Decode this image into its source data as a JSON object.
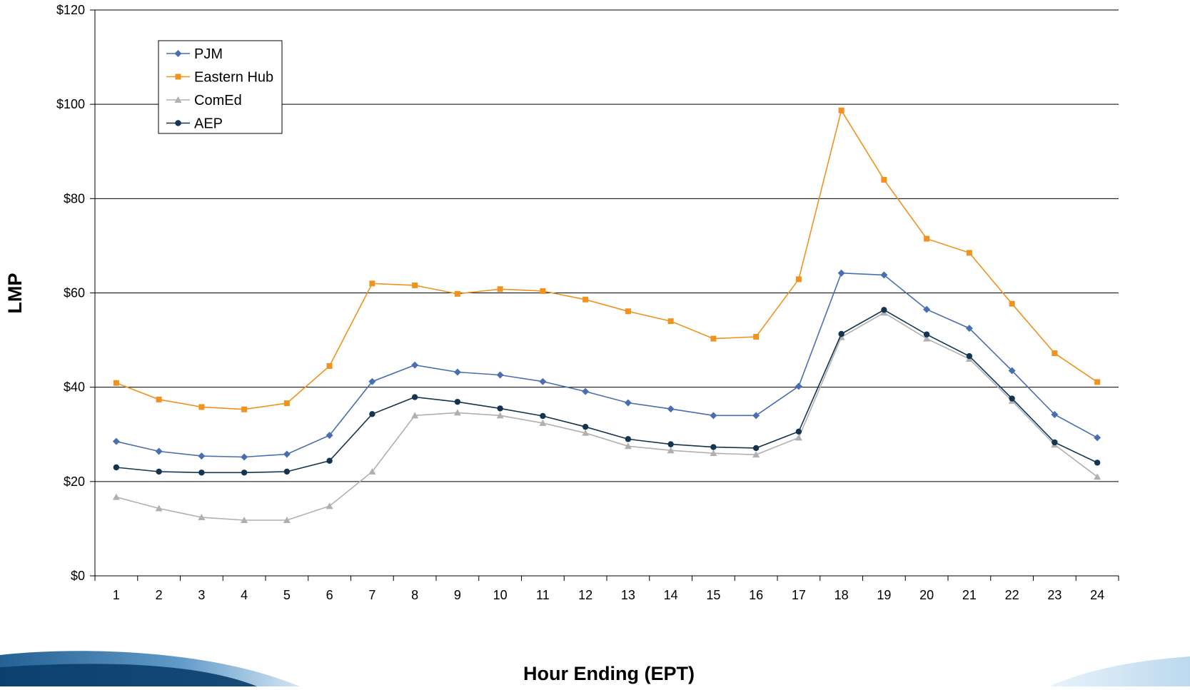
{
  "chart_data": {
    "type": "line",
    "title": "",
    "xlabel": "Hour Ending (EPT)",
    "ylabel": "LMP",
    "x": [
      "1",
      "2",
      "3",
      "4",
      "5",
      "6",
      "7",
      "8",
      "9",
      "10",
      "11",
      "12",
      "13",
      "14",
      "15",
      "16",
      "17",
      "18",
      "19",
      "20",
      "21",
      "22",
      "23",
      "24"
    ],
    "ylim": [
      0,
      120
    ],
    "y_ticks": [
      0,
      20,
      40,
      60,
      80,
      100,
      120
    ],
    "y_tick_labels": [
      "$0",
      "$20",
      "$40",
      "$60",
      "$80",
      "$100",
      "$120"
    ],
    "grid": "horizontal",
    "legend_position": "top-left",
    "series": [
      {
        "name": "PJM",
        "color": "#4a6fb0",
        "marker": "diamond",
        "values": [
          28.5,
          26.4,
          25.4,
          25.2,
          25.8,
          29.8,
          41.2,
          44.7,
          43.2,
          42.6,
          41.2,
          39.1,
          36.7,
          35.4,
          34.0,
          34.0,
          40.2,
          64.2,
          63.8,
          56.5,
          52.5,
          43.5,
          34.2,
          29.3
        ]
      },
      {
        "name": "Eastern Hub",
        "color": "#f0921e",
        "marker": "square",
        "values": [
          40.9,
          37.4,
          35.8,
          35.3,
          36.6,
          44.5,
          62.0,
          61.6,
          59.8,
          60.8,
          60.4,
          58.6,
          56.1,
          54.0,
          50.3,
          50.7,
          62.9,
          98.7,
          84.0,
          71.5,
          68.5,
          57.7,
          47.2,
          41.1
        ]
      },
      {
        "name": "ComEd",
        "color": "#b0b0b0",
        "marker": "triangle",
        "values": [
          16.7,
          14.3,
          12.4,
          11.8,
          11.8,
          14.8,
          22.1,
          34.0,
          34.6,
          34.0,
          32.4,
          30.3,
          27.5,
          26.6,
          26.0,
          25.7,
          29.3,
          50.6,
          55.8,
          50.3,
          46.0,
          37.1,
          27.8,
          21.0
        ]
      },
      {
        "name": "AEP",
        "color": "#14344f",
        "marker": "circle",
        "values": [
          23.0,
          22.1,
          21.9,
          21.9,
          22.1,
          24.4,
          34.3,
          37.9,
          36.9,
          35.5,
          33.9,
          31.6,
          29.0,
          27.9,
          27.3,
          27.1,
          30.6,
          51.3,
          56.4,
          51.2,
          46.6,
          37.6,
          28.3,
          24.0
        ]
      }
    ]
  }
}
